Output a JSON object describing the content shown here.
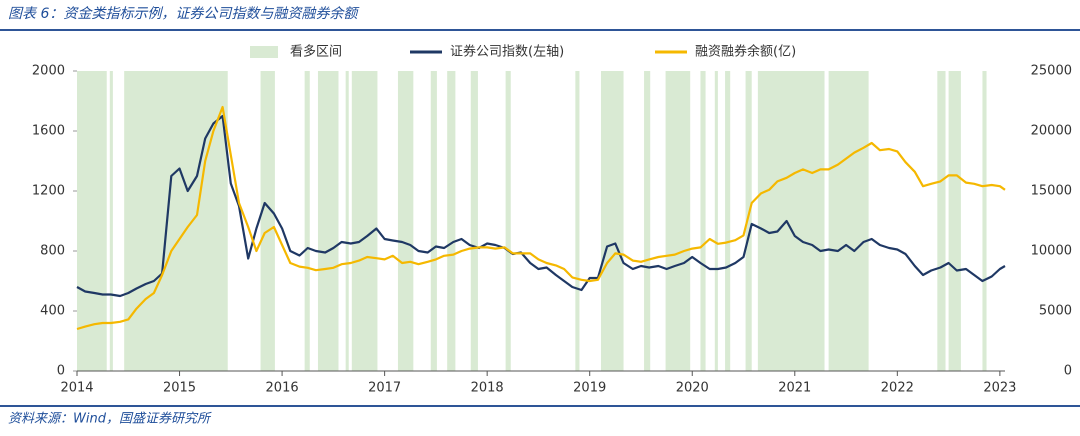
{
  "title": "图表 6：资金类指标示例，证券公司指数与融资融券余额",
  "source": "资料来源：Wind，国盛证券研究所",
  "chart_data": {
    "type": "line",
    "x": [
      2014,
      2014.08,
      2014.17,
      2014.25,
      2014.33,
      2014.42,
      2014.5,
      2014.58,
      2014.67,
      2014.75,
      2014.83,
      2014.92,
      2015,
      2015.08,
      2015.17,
      2015.25,
      2015.33,
      2015.42,
      2015.5,
      2015.58,
      2015.67,
      2015.75,
      2015.83,
      2015.92,
      2016,
      2016.08,
      2016.17,
      2016.25,
      2016.33,
      2016.42,
      2016.5,
      2016.58,
      2016.67,
      2016.75,
      2016.83,
      2016.92,
      2017,
      2017.08,
      2017.17,
      2017.25,
      2017.33,
      2017.42,
      2017.5,
      2017.58,
      2017.67,
      2017.75,
      2017.83,
      2017.92,
      2018,
      2018.08,
      2018.17,
      2018.25,
      2018.33,
      2018.42,
      2018.5,
      2018.58,
      2018.67,
      2018.75,
      2018.83,
      2018.92,
      2019,
      2019.08,
      2019.17,
      2019.25,
      2019.33,
      2019.42,
      2019.5,
      2019.58,
      2019.67,
      2019.75,
      2019.83,
      2019.92,
      2020,
      2020.08,
      2020.17,
      2020.25,
      2020.33,
      2020.42,
      2020.5,
      2020.58,
      2020.67,
      2020.75,
      2020.83,
      2020.92,
      2021,
      2021.08,
      2021.17,
      2021.25,
      2021.33,
      2021.42,
      2021.5,
      2021.58,
      2021.67,
      2021.75,
      2021.83,
      2021.92,
      2022,
      2022.08,
      2022.17,
      2022.25,
      2022.33,
      2022.42,
      2022.5,
      2022.58,
      2022.67,
      2022.75,
      2022.83,
      2022.92,
      2023,
      2023.05
    ],
    "series": [
      {
        "name": "证券公司指数(左轴)",
        "color": "#1f3864",
        "axis": "y",
        "values": [
          560,
          530,
          520,
          510,
          510,
          500,
          520,
          550,
          580,
          600,
          650,
          1300,
          1350,
          1200,
          1300,
          1550,
          1650,
          1700,
          1250,
          1100,
          750,
          950,
          1120,
          1050,
          950,
          800,
          770,
          820,
          800,
          790,
          820,
          860,
          850,
          860,
          900,
          950,
          880,
          870,
          860,
          840,
          800,
          790,
          830,
          820,
          860,
          880,
          840,
          820,
          850,
          840,
          820,
          780,
          790,
          720,
          680,
          690,
          640,
          600,
          560,
          540,
          620,
          620,
          830,
          850,
          720,
          680,
          700,
          690,
          700,
          680,
          700,
          720,
          760,
          720,
          680,
          680,
          690,
          720,
          760,
          980,
          950,
          920,
          930,
          1000,
          900,
          860,
          840,
          800,
          810,
          800,
          840,
          800,
          860,
          880,
          840,
          820,
          810,
          780,
          700,
          640,
          670,
          690,
          720,
          670,
          680,
          640,
          600,
          630,
          680,
          700
        ]
      },
      {
        "name": "融资融券余额(亿)",
        "color": "#f5b800",
        "axis": "y2",
        "values": [
          3500,
          3700,
          3900,
          4000,
          4000,
          4100,
          4300,
          5200,
          6000,
          6500,
          8000,
          10000,
          11000,
          12000,
          13000,
          17500,
          20000,
          22000,
          18000,
          14000,
          12000,
          10000,
          11500,
          12000,
          10500,
          9000,
          8700,
          8600,
          8400,
          8500,
          8600,
          8900,
          9000,
          9200,
          9500,
          9400,
          9300,
          9600,
          9000,
          9100,
          8900,
          9100,
          9300,
          9600,
          9700,
          10000,
          10200,
          10300,
          10300,
          10200,
          10300,
          9800,
          9800,
          9800,
          9300,
          9000,
          8800,
          8500,
          7800,
          7600,
          7500,
          7600,
          9000,
          9800,
          9700,
          9200,
          9100,
          9300,
          9500,
          9600,
          9700,
          10000,
          10200,
          10300,
          11000,
          10600,
          10700,
          10900,
          11300,
          14000,
          14800,
          15100,
          15800,
          16100,
          16500,
          16800,
          16500,
          16800,
          16800,
          17200,
          17700,
          18200,
          18600,
          19000,
          18400,
          18500,
          18300,
          17400,
          16600,
          15400,
          15600,
          15800,
          16300,
          16300,
          15700,
          15600,
          15400,
          15500,
          15400,
          15100
        ]
      }
    ],
    "intervals": {
      "name": "看多区间",
      "color": "#d9ead3",
      "ranges": [
        [
          2014,
          2014.29
        ],
        [
          2014.32,
          2014.35
        ],
        [
          2014.46,
          2015.47
        ],
        [
          2015.79,
          2015.93
        ],
        [
          2016.22,
          2016.27
        ],
        [
          2016.35,
          2016.55
        ],
        [
          2016.62,
          2016.65
        ],
        [
          2016.68,
          2016.93
        ],
        [
          2017.13,
          2017.28
        ],
        [
          2017.45,
          2017.51
        ],
        [
          2017.61,
          2017.69
        ],
        [
          2017.84,
          2017.91
        ],
        [
          2018.18,
          2018.23
        ],
        [
          2018.86,
          2018.9
        ],
        [
          2019.11,
          2019.33
        ],
        [
          2019.53,
          2019.59
        ],
        [
          2019.74,
          2019.98
        ],
        [
          2020.08,
          2020.13
        ],
        [
          2020.22,
          2020.25
        ],
        [
          2020.32,
          2020.37
        ],
        [
          2020.52,
          2020.58
        ],
        [
          2020.64,
          2021.29
        ],
        [
          2021.33,
          2021.72
        ],
        [
          2022.39,
          2022.47
        ],
        [
          2022.5,
          2022.62
        ],
        [
          2022.83,
          2022.87
        ]
      ]
    },
    "xlim": [
      2014,
      2023.05
    ],
    "xticks": [
      2014,
      2015,
      2016,
      2017,
      2018,
      2019,
      2020,
      2021,
      2022,
      2023
    ],
    "ylim": [
      0,
      2000
    ],
    "yticks": [
      0,
      400,
      800,
      1200,
      1600,
      2000
    ],
    "y2lim": [
      0,
      25000
    ],
    "y2ticks": [
      0,
      5000,
      10000,
      15000,
      20000,
      25000
    ]
  }
}
